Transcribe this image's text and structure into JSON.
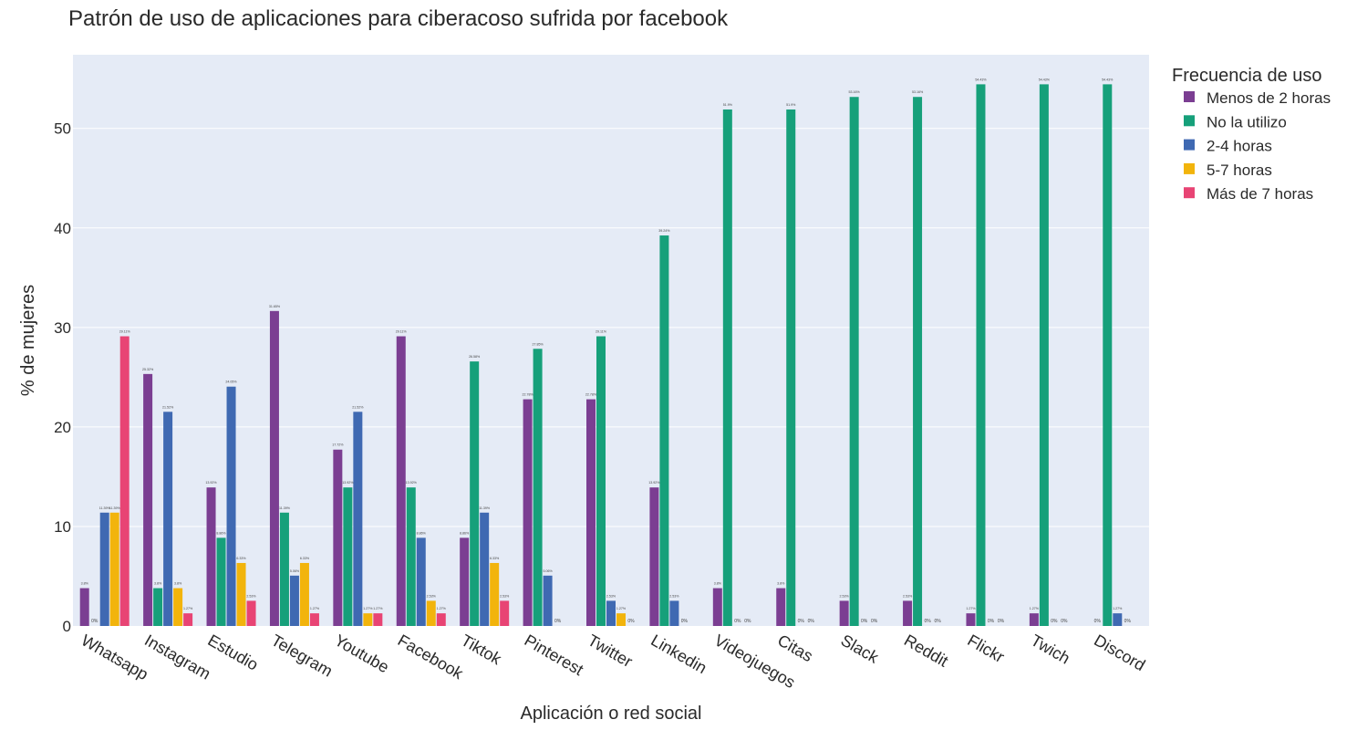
{
  "chart_data": {
    "type": "bar",
    "title": "Patrón de uso de aplicaciones para ciberacoso sufrida por facebook",
    "xlabel": "Aplicación o red social",
    "ylabel": "% de mujeres",
    "ylim": [
      0,
      57.4
    ],
    "yticks": [
      0,
      10,
      20,
      30,
      40,
      50
    ],
    "grid": true,
    "legend_title": "Frecuencia de uso",
    "legend_position": "top-right",
    "categories": [
      "Whatsapp",
      "Instagram",
      "Estudio",
      "Telegram",
      "Youtube",
      "Facebook",
      "Tiktok",
      "Pinterest",
      "Twitter",
      "Linkedin",
      "Videojuegos",
      "Citas",
      "Slack",
      "Reddit",
      "Flickr",
      "Twich",
      "Discord"
    ],
    "series": [
      {
        "name": "Menos de 2 horas",
        "color": "#7b3e92",
        "values": [
          3.8,
          25.32,
          13.92,
          31.65,
          17.72,
          29.11,
          8.86,
          22.78,
          22.78,
          13.92,
          3.8,
          3.8,
          2.53,
          2.53,
          1.27,
          1.27,
          0
        ],
        "labels": [
          "3.8%",
          "25.32%",
          "13.92%",
          "31.65%",
          "17.72%",
          "29.11%",
          "8.86%",
          "22.78%",
          "22.78%",
          "13.92%",
          "3.8%",
          "3.8%",
          "2.53%",
          "2.53%",
          "1.27%",
          "1.27%",
          "0%"
        ]
      },
      {
        "name": "No la utilizo",
        "color": "#16a07a",
        "values": [
          0,
          3.8,
          8.86,
          11.39,
          13.92,
          13.92,
          26.58,
          27.85,
          29.11,
          39.24,
          51.9,
          51.9,
          53.16,
          53.16,
          54.43,
          54.43,
          54.43
        ],
        "labels": [
          "0%",
          "3.8%",
          "8.86%",
          "11.39%",
          "13.92%",
          "13.92%",
          "26.58%",
          "27.85%",
          "29.11%",
          "39.24%",
          "51.9%",
          "51.9%",
          "53.16%",
          "53.16%",
          "54.43%",
          "54.43%",
          "54.43%"
        ]
      },
      {
        "name": "2-4 horas",
        "color": "#3f69b2",
        "values": [
          11.39,
          21.52,
          24.05,
          5.06,
          21.52,
          8.86,
          11.39,
          5.06,
          2.53,
          2.53,
          0,
          0,
          0,
          0,
          0,
          0,
          1.27
        ],
        "labels": [
          "11.39%",
          "21.52%",
          "24.05%",
          "5.06%",
          "21.52%",
          "8.86%",
          "11.39%",
          "5.06%",
          "2.53%",
          "2.53%",
          "0%",
          "0%",
          "0%",
          "0%",
          "0%",
          "0%",
          "1.27%"
        ]
      },
      {
        "name": "5-7 horas",
        "color": "#f2b40c",
        "values": [
          11.39,
          3.8,
          6.33,
          6.33,
          1.27,
          2.53,
          6.33,
          0,
          1.27,
          0,
          0,
          0,
          0,
          0,
          0,
          0,
          0
        ],
        "labels": [
          "11.39%",
          "3.8%",
          "6.33%",
          "6.33%",
          "1.27%",
          "2.53%",
          "6.33%",
          "0%",
          "1.27%",
          "0%",
          "0%",
          "0%",
          "0%",
          "0%",
          "0%",
          "0%",
          "0%"
        ]
      },
      {
        "name": "Más de 7 horas",
        "color": "#e84474",
        "values": [
          29.11,
          1.27,
          2.53,
          1.27,
          1.27,
          1.27,
          2.53,
          0,
          0,
          0,
          0,
          0,
          0,
          0,
          0,
          0,
          0
        ],
        "labels": [
          "29.11%",
          "1.27%",
          "2.53%",
          "1.27%",
          "1.27%",
          "1.27%",
          "2.53%",
          "",
          "0%",
          "",
          "",
          "",
          "",
          "",
          "",
          "",
          ""
        ]
      }
    ]
  }
}
